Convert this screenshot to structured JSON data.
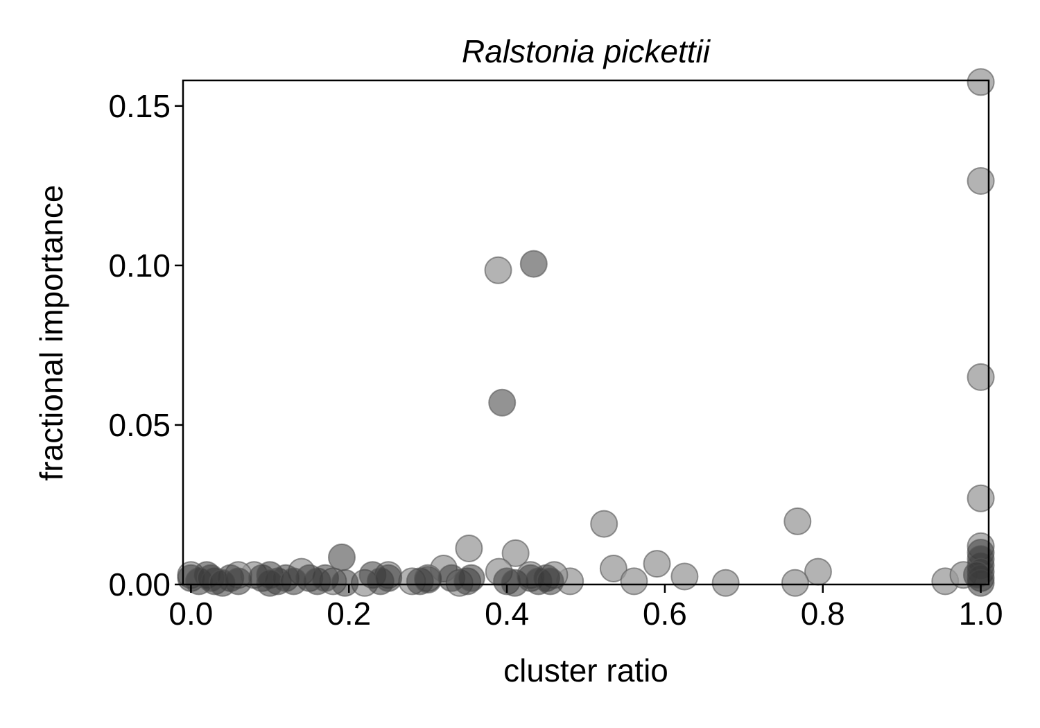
{
  "chart_data": {
    "type": "scatter",
    "title": "Ralstonia pickettii",
    "xlabel": "cluster ratio",
    "ylabel": "fractional importance",
    "xlim": [
      -0.01,
      1.01
    ],
    "ylim": [
      0.0,
      0.158
    ],
    "xticks": [
      "0.0",
      "0.2",
      "0.4",
      "0.6",
      "0.8",
      "1.0"
    ],
    "yticks": [
      "0.00",
      "0.05",
      "0.10",
      "0.15"
    ],
    "grid": false,
    "legend": "none",
    "marker_colors": {
      "light": "#9a9a9a",
      "dark": "#3a3a3a"
    },
    "series": [
      {
        "shade": "light",
        "points": [
          [
            0.389,
            0.0985
          ],
          [
            0.352,
            0.0113
          ],
          [
            0.411,
            0.0098
          ],
          [
            0.523,
            0.019
          ],
          [
            0.535,
            0.005
          ],
          [
            0.59,
            0.0065
          ],
          [
            0.625,
            0.0025
          ],
          [
            0.561,
            0.001
          ],
          [
            0.677,
            0.0005
          ],
          [
            0.768,
            0.0198
          ],
          [
            0.794,
            0.004
          ],
          [
            0.765,
            0.0005
          ],
          [
            0.955,
            0.001
          ],
          [
            0.978,
            0.003
          ],
          [
            1.0,
            0.1575
          ],
          [
            1.0,
            0.1265
          ],
          [
            1.0,
            0.065
          ],
          [
            1.0,
            0.027
          ],
          [
            1.0,
            0.012
          ],
          [
            0.32,
            0.005
          ],
          [
            0.39,
            0.004
          ],
          [
            0.48,
            0.001
          ],
          [
            0.43,
            0.003
          ],
          [
            0.3,
            0.002
          ],
          [
            0.25,
            0.003
          ],
          [
            0.14,
            0.004
          ],
          [
            0.08,
            0.003
          ],
          [
            0.0,
            0.003
          ],
          [
            0.06,
            0.003
          ],
          [
            0.46,
            0.003
          ],
          [
            0.28,
            0.001
          ],
          [
            0.18,
            0.001
          ],
          [
            0.34,
            0.0005
          ],
          [
            0.22,
            0.0005
          ]
        ]
      },
      {
        "shade": "dark",
        "points": [
          [
            0.434,
            0.1005
          ],
          [
            0.394,
            0.057
          ],
          [
            0.191,
            0.0085
          ],
          [
            1.0,
            0.01
          ],
          [
            1.0,
            0.008
          ],
          [
            1.0,
            0.006
          ],
          [
            1.0,
            0.004
          ],
          [
            1.0,
            0.002
          ],
          [
            1.0,
            0.0005
          ],
          [
            0.995,
            0.003
          ],
          [
            0.0,
            0.002
          ],
          [
            0.01,
            0.001
          ],
          [
            0.02,
            0.003
          ],
          [
            0.03,
            0.001
          ],
          [
            0.025,
            0.002
          ],
          [
            0.05,
            0.002
          ],
          [
            0.06,
            0.001
          ],
          [
            0.09,
            0.002
          ],
          [
            0.1,
            0.003
          ],
          [
            0.11,
            0.001
          ],
          [
            0.12,
            0.002
          ],
          [
            0.1,
            0.0005
          ],
          [
            0.15,
            0.002
          ],
          [
            0.16,
            0.001
          ],
          [
            0.17,
            0.002
          ],
          [
            0.13,
            0.001
          ],
          [
            0.23,
            0.003
          ],
          [
            0.24,
            0.001
          ],
          [
            0.25,
            0.002
          ],
          [
            0.29,
            0.001
          ],
          [
            0.3,
            0.0015
          ],
          [
            0.33,
            0.002
          ],
          [
            0.35,
            0.001
          ],
          [
            0.355,
            0.002
          ],
          [
            0.4,
            0.001
          ],
          [
            0.41,
            0.0005
          ],
          [
            0.43,
            0.002
          ],
          [
            0.44,
            0.001
          ],
          [
            0.45,
            0.002
          ],
          [
            0.455,
            0.001
          ],
          [
            0.04,
            0.0005
          ],
          [
            0.195,
            0.0005
          ]
        ]
      }
    ]
  }
}
